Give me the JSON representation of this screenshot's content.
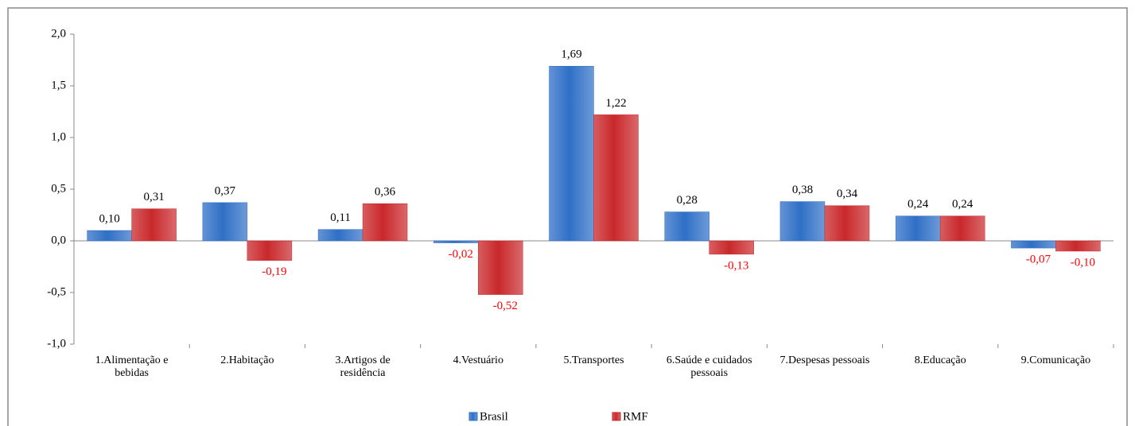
{
  "chart_data": {
    "type": "bar",
    "categories": [
      "1.Alimentação e bebidas",
      "2.Habitação",
      "3.Artigos de residência",
      "4.Vestuário",
      "5.Transportes",
      "6.Saúde e cuidados pessoais",
      "7.Despesas pessoais",
      "8.Educação",
      "9.Comunicação"
    ],
    "series": [
      {
        "name": "Brasil",
        "color": "#2f6fc6",
        "values": [
          0.1,
          0.37,
          0.11,
          -0.02,
          1.69,
          0.28,
          0.38,
          0.24,
          -0.07
        ],
        "value_labels": [
          "0,10",
          "0,37",
          "0,11",
          "-0,02",
          "1,69",
          "0,28",
          "0,38",
          "0,24",
          "-0,07"
        ]
      },
      {
        "name": "RMF",
        "color": "#c9282b",
        "values": [
          0.31,
          -0.19,
          0.36,
          -0.52,
          1.22,
          -0.13,
          0.34,
          0.24,
          -0.1
        ],
        "value_labels": [
          "0,31",
          "-0,19",
          "0,36",
          "-0,52",
          "1,22",
          "-0,13",
          "0,34",
          "0,24",
          "-0,10"
        ]
      }
    ],
    "ylim": [
      -1.0,
      2.0
    ],
    "yticks": [
      {
        "value": -1.0,
        "label": "-1,0"
      },
      {
        "value": -0.5,
        "label": "-0,5"
      },
      {
        "value": 0.0,
        "label": "0,0"
      },
      {
        "value": 0.5,
        "label": "0,5"
      },
      {
        "value": 1.0,
        "label": "1,0"
      },
      {
        "value": 1.5,
        "label": "1,5"
      },
      {
        "value": 2.0,
        "label": "2,0"
      }
    ],
    "negative_label_color": "#ff0000",
    "legend": "bottom"
  }
}
